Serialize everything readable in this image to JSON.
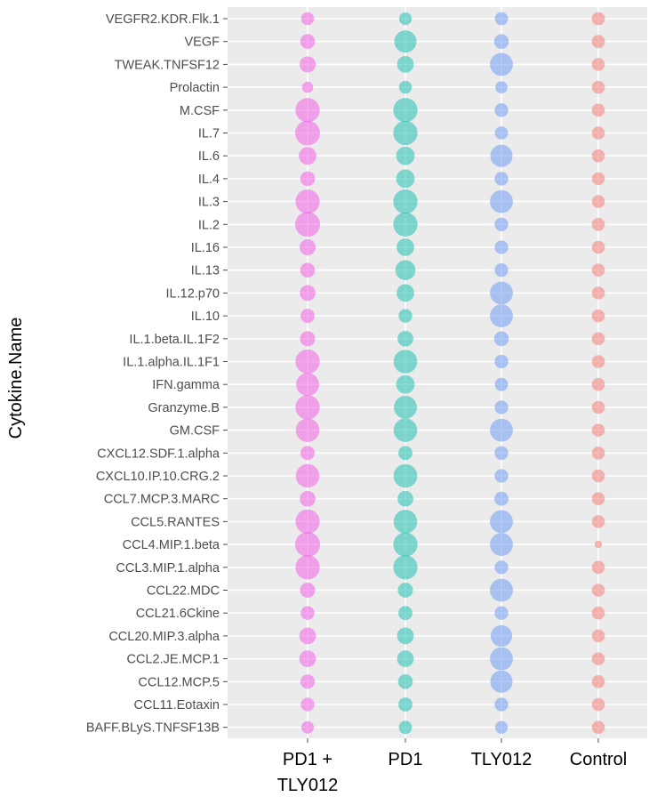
{
  "chart_data": {
    "type": "bubble",
    "title": "",
    "xlabel": "",
    "ylabel": "Cytokine.Name",
    "grid": true,
    "legend": "none",
    "groups": [
      {
        "name": "PD1 + TLY012",
        "label_lines": [
          "PD1 +",
          "TLY012"
        ],
        "color": "#f25ee6"
      },
      {
        "name": "PD1",
        "label_lines": [
          "PD1"
        ],
        "color": "#1fbfb0"
      },
      {
        "name": "TLY012",
        "label_lines": [
          "TLY012"
        ],
        "color": "#6f9df2"
      },
      {
        "name": "Control",
        "label_lines": [
          "Control"
        ],
        "color": "#f27d78"
      }
    ],
    "cytokines": [
      "VEGFR2.KDR.Flk.1",
      "VEGF",
      "TWEAK.TNFSF12",
      "Prolactin",
      "M.CSF",
      "IL.7",
      "IL.6",
      "IL.4",
      "IL.3",
      "IL.2",
      "IL.16",
      "IL.13",
      "IL.12.p70",
      "IL.10",
      "IL.1.beta.IL.1F2",
      "IL.1.alpha.IL.1F1",
      "IFN.gamma",
      "Granzyme.B",
      "GM.CSF",
      "CXCL12.SDF.1.alpha",
      "CXCL10.IP.10.CRG.2",
      "CCL7.MCP.3.MARC",
      "CCL5.RANTES",
      "CCL4.MIP.1.beta",
      "CCL3.MIP.1.alpha",
      "CCL22.MDC",
      "CCL21.6Ckine",
      "CCL20.MIP.3.alpha",
      "CCL2.JE.MCP.1",
      "CCL12.MCP.5",
      "CCL11.Eotaxin",
      "BAFF.BLyS.TNFSF13B"
    ],
    "size_unit": "relative bubble size (0-1)",
    "values": {
      "PD1 + TLY012": [
        0.27,
        0.35,
        0.42,
        0.2,
        0.95,
        1.0,
        0.5,
        0.35,
        0.95,
        1.0,
        0.42,
        0.35,
        0.4,
        0.32,
        0.37,
        0.95,
        0.85,
        0.95,
        0.9,
        0.32,
        0.9,
        0.4,
        0.95,
        1.0,
        0.95,
        0.37,
        0.3,
        0.45,
        0.45,
        0.33,
        0.3,
        0.25
      ],
      "PD1": [
        0.26,
        0.8,
        0.45,
        0.27,
        0.95,
        0.95,
        0.55,
        0.55,
        0.95,
        0.95,
        0.5,
        0.65,
        0.5,
        0.3,
        0.4,
        0.9,
        0.55,
        0.85,
        0.9,
        0.32,
        0.9,
        0.4,
        0.9,
        0.95,
        0.95,
        0.37,
        0.32,
        0.45,
        0.45,
        0.35,
        0.32,
        0.28
      ],
      "TLY012": [
        0.28,
        0.35,
        0.85,
        0.24,
        0.3,
        0.28,
        0.8,
        0.3,
        0.85,
        0.3,
        0.3,
        0.3,
        0.85,
        0.85,
        0.35,
        0.3,
        0.28,
        0.3,
        0.85,
        0.3,
        0.3,
        0.32,
        0.85,
        0.85,
        0.3,
        0.85,
        0.3,
        0.75,
        0.85,
        0.8,
        0.3,
        0.26
      ],
      "Control": [
        0.28,
        0.28,
        0.27,
        0.27,
        0.27,
        0.27,
        0.27,
        0.27,
        0.27,
        0.27,
        0.27,
        0.27,
        0.27,
        0.27,
        0.27,
        0.27,
        0.27,
        0.27,
        0.27,
        0.27,
        0.27,
        0.27,
        0.27,
        0.09,
        0.27,
        0.27,
        0.27,
        0.27,
        0.27,
        0.27,
        0.27,
        0.27
      ]
    }
  }
}
